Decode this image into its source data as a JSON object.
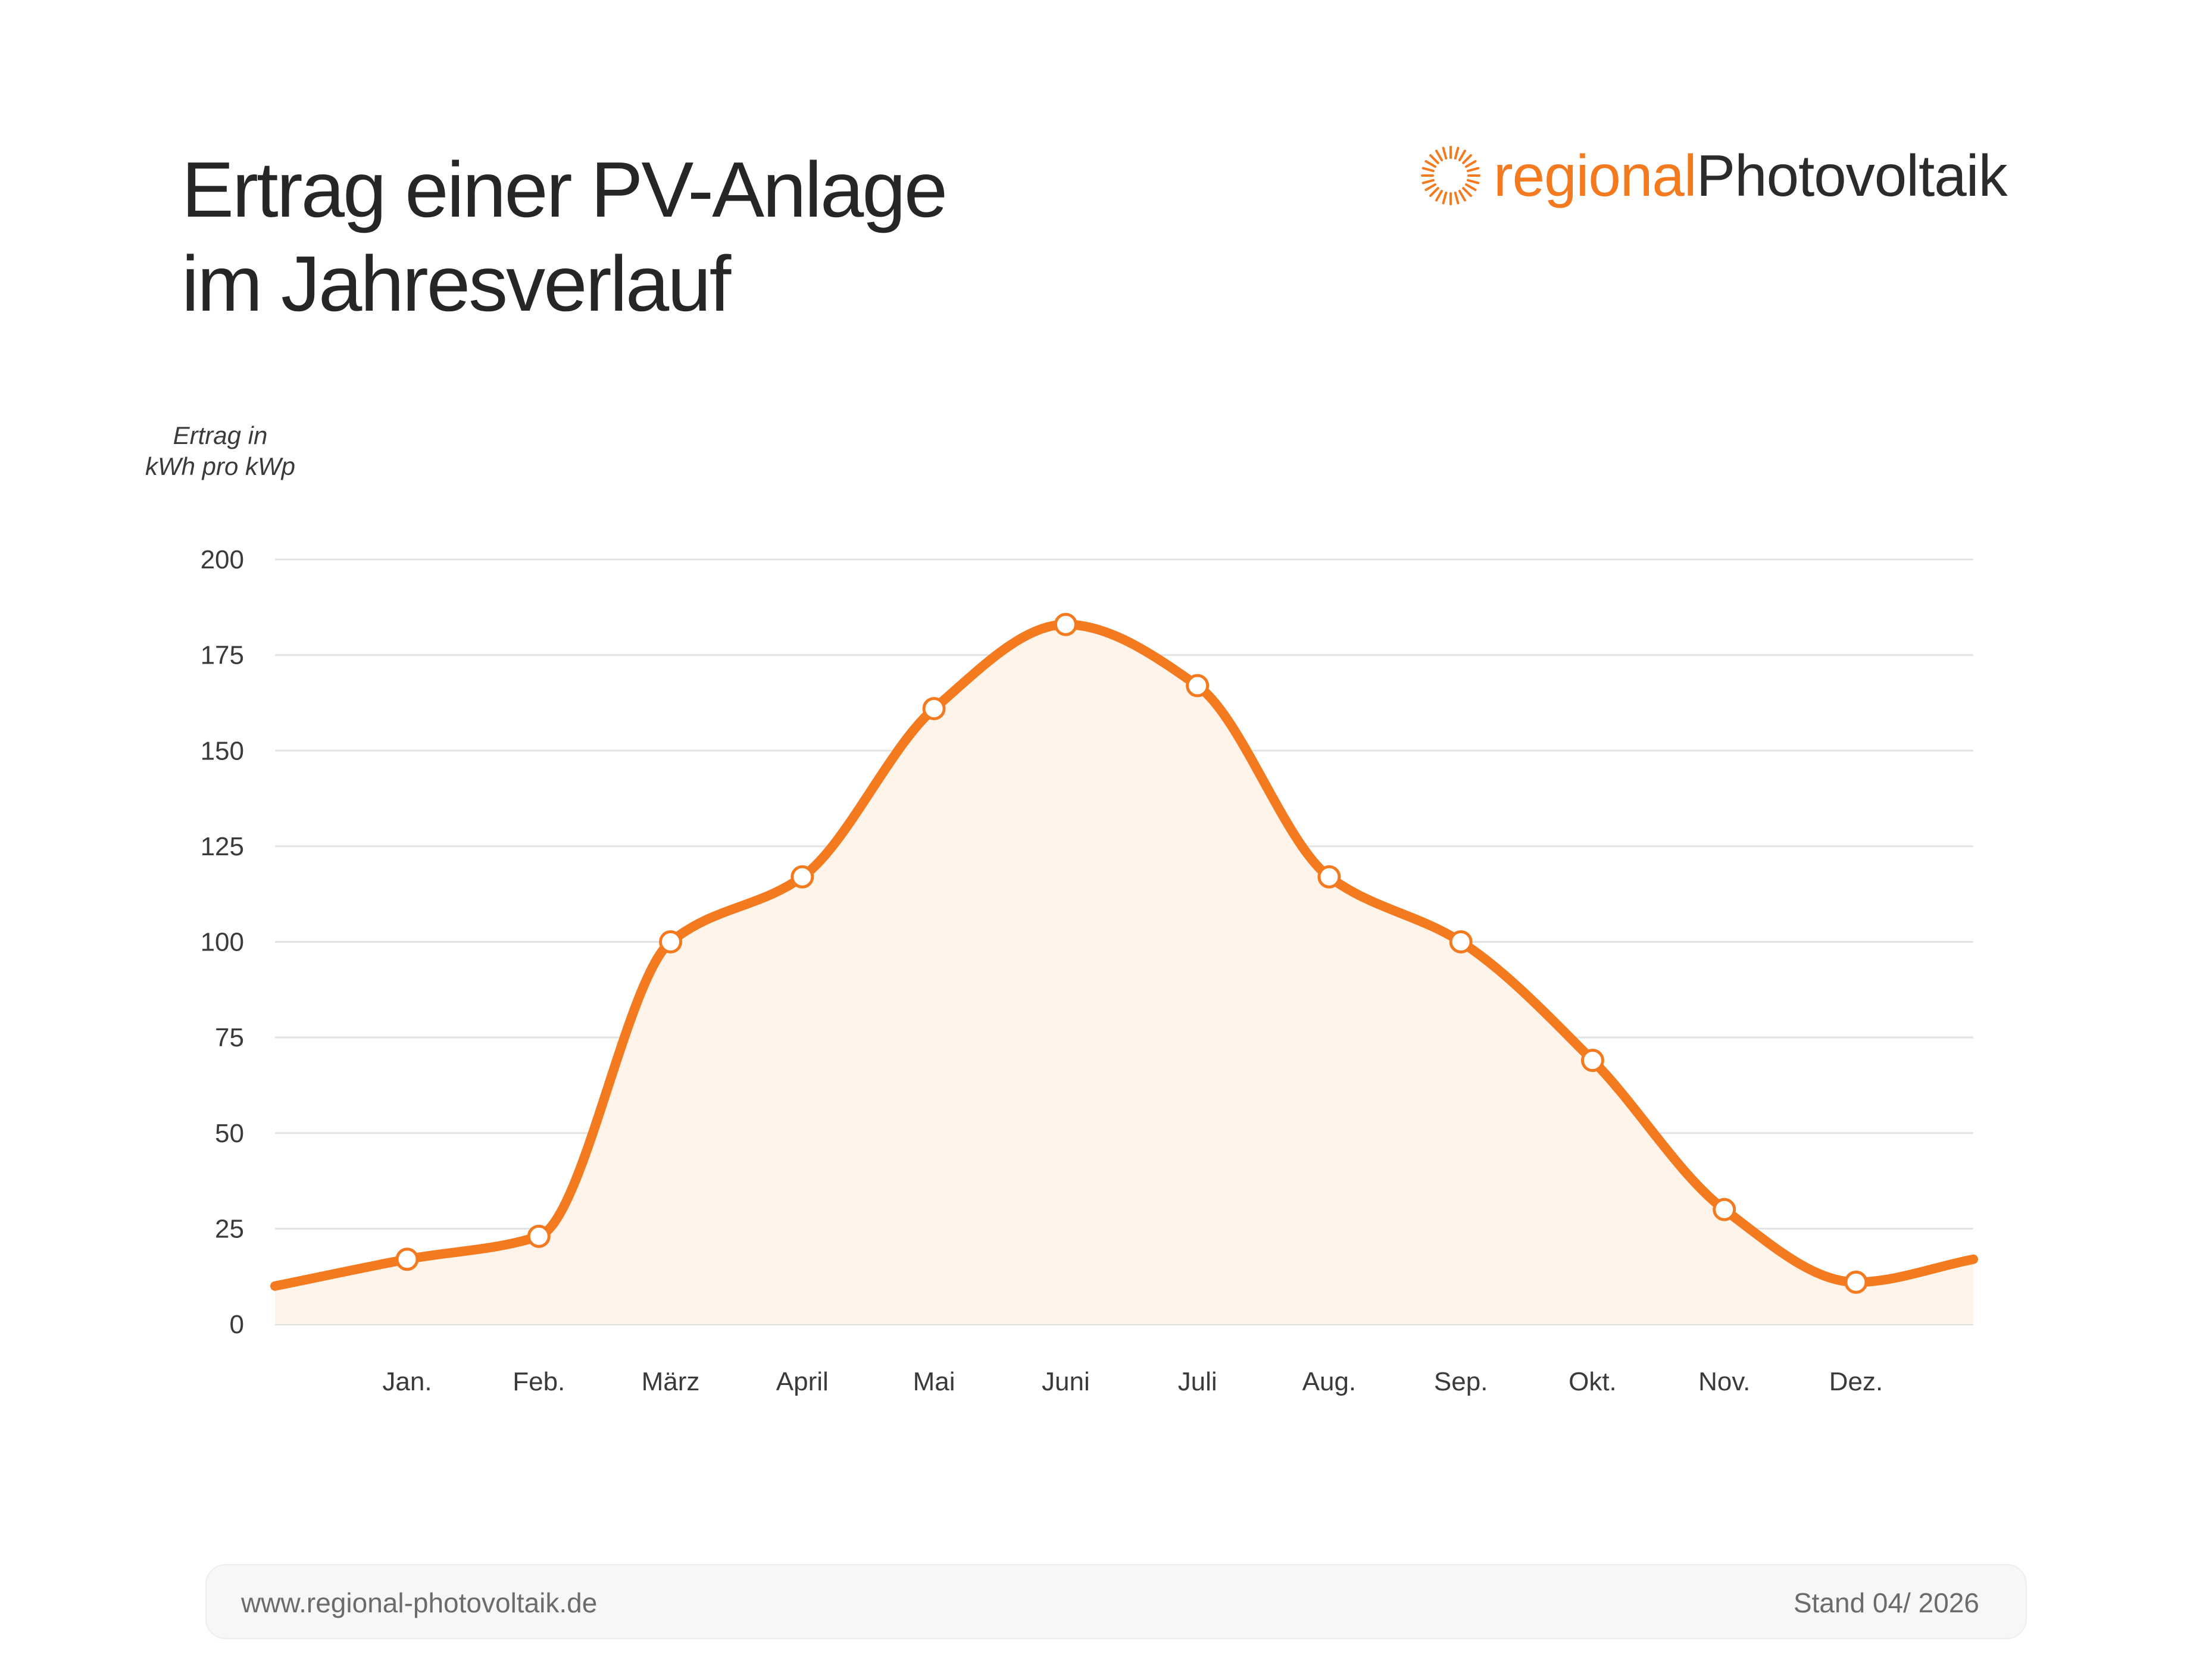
{
  "title": {
    "line1": "Ertrag einer PV-Anlage",
    "line2": "im Jahresverlauf"
  },
  "logo": {
    "part1": "regional",
    "part2": "Photovoltaik",
    "icon": "sun-rays-icon"
  },
  "colors": {
    "accent": "#f47a20",
    "fill": "#fff4e9",
    "grid": "#e3e3e3",
    "text": "#2a2a2a"
  },
  "footer": {
    "url": "www.regional-photovoltaik.de",
    "stand": "Stand 04/ 2026"
  },
  "chart_data": {
    "type": "area",
    "ylabel_line1": "Ertrag in",
    "ylabel_line2": "kWh pro kWp",
    "categories": [
      "Jan.",
      "Feb.",
      "März",
      "April",
      "Mai",
      "Juni",
      "Juli",
      "Aug.",
      "Sep.",
      "Okt.",
      "Nov.",
      "Dez."
    ],
    "values": [
      17,
      23,
      100,
      117,
      161,
      183,
      167,
      117,
      100,
      69,
      30,
      11
    ],
    "line_start": 10,
    "line_end": 17,
    "ylim": [
      0,
      200
    ],
    "yticks": [
      0,
      25,
      50,
      75,
      100,
      125,
      150,
      175,
      200
    ],
    "grid": true,
    "legend": false
  }
}
